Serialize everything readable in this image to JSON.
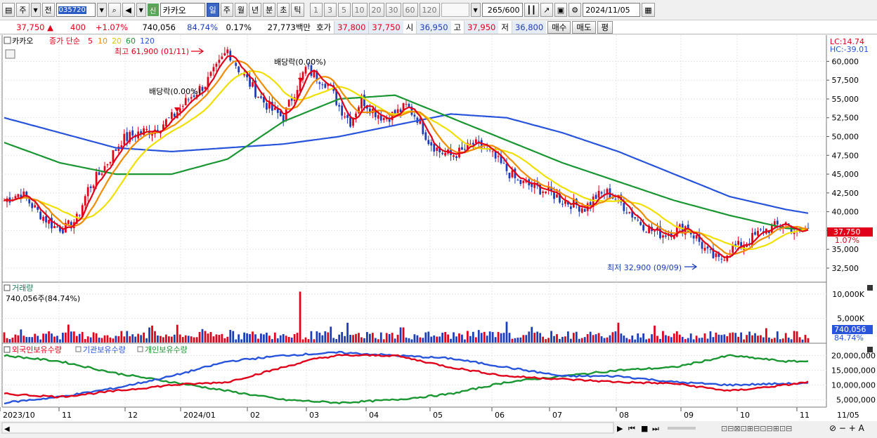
{
  "toolbar": {
    "period_label": "주",
    "prev_label": "전",
    "stock_code": "035720",
    "new_badge": "신",
    "stock_name": "카카오",
    "intervals": [
      "일",
      "주",
      "월",
      "년",
      "분",
      "초",
      "틱"
    ],
    "active_interval": "일",
    "multipliers": [
      "1",
      "3",
      "5",
      "10",
      "20",
      "30",
      "60",
      "120"
    ],
    "count": "265",
    "count_max": "/600",
    "date": "2024/11/05"
  },
  "quote": {
    "price": "37,750",
    "arrow": "▲",
    "change": "400",
    "change_pct": "+1.07%",
    "volume": "740,056",
    "volume_ratio": "84.74%",
    "turnover": "0.17%",
    "amount": "27,773백만",
    "bid_ask_label": "호가",
    "ask": "37,800",
    "bid": "37,750",
    "open_label": "시",
    "open": "36,950",
    "high_label": "고",
    "high": "37,950",
    "low_label": "저",
    "low": "36,800",
    "buy_button": "매수",
    "sell_button": "매도",
    "eval_button": "평"
  },
  "price_panel": {
    "title": "카카오",
    "ma_legend_prefix": "종가 단순",
    "ma_periods": [
      "5",
      "10",
      "20",
      "60",
      "120"
    ],
    "ma_colors": [
      "#e0001a",
      "#f08c00",
      "#f0e000",
      "#1a9632",
      "#2854dc"
    ],
    "lc_label": "LC:14.74",
    "hc_label": "HC:-39.01",
    "current_price_tag": "37,750",
    "current_change_tag": "1.07%",
    "high_annotation": "최고 61,900 (01/11)",
    "low_annotation": "최저 32,900 (09/09)",
    "dividend_annotation_1": "배당락(0.00%)",
    "dividend_annotation_2": "배당락(0.00%)",
    "y_ticks": [
      "60,000",
      "57,500",
      "55,000",
      "52,500",
      "50,000",
      "47,500",
      "45,000",
      "42,500",
      "40,000",
      "37,500",
      "35,000",
      "32,500"
    ]
  },
  "volume_panel": {
    "title": "거래량",
    "info": "740,056주(84.74%)",
    "y_ticks": [
      "10,000K",
      "5,000K"
    ],
    "current_tag": "740,056",
    "current_pct": "84.74%"
  },
  "holding_panel": {
    "legend": [
      "외국인보유수량",
      "기관보유수량",
      "개인보유수량"
    ],
    "legend_colors": [
      "#e0001a",
      "#2854dc",
      "#1a9632"
    ],
    "y_ticks": [
      "20,000,000",
      "15,000,000",
      "10,000,000",
      "5,000,000"
    ]
  },
  "x_axis": {
    "labels": [
      "2023/10",
      "11",
      "12",
      "2024/01",
      "02",
      "03",
      "04",
      "05",
      "06",
      "07",
      "08",
      "09",
      "10",
      "11",
      "11/05"
    ]
  },
  "chart_data": {
    "type": "candlestick",
    "title": "카카오",
    "y_range": [
      31000,
      62000
    ],
    "price_trend": [
      [
        0,
        41500
      ],
      [
        6,
        42500
      ],
      [
        12,
        40000
      ],
      [
        18,
        38000
      ],
      [
        22,
        37800
      ],
      [
        26,
        39000
      ],
      [
        30,
        43000
      ],
      [
        36,
        46000
      ],
      [
        42,
        49500
      ],
      [
        48,
        50500
      ],
      [
        54,
        51000
      ],
      [
        60,
        52500
      ],
      [
        66,
        55000
      ],
      [
        72,
        57000
      ],
      [
        76,
        59000
      ],
      [
        80,
        61500
      ],
      [
        84,
        59000
      ],
      [
        88,
        57000
      ],
      [
        92,
        55000
      ],
      [
        96,
        53500
      ],
      [
        100,
        52500
      ],
      [
        104,
        56000
      ],
      [
        108,
        59000
      ],
      [
        112,
        58000
      ],
      [
        116,
        57000
      ],
      [
        120,
        54000
      ],
      [
        124,
        52000
      ],
      [
        128,
        55000
      ],
      [
        132,
        53500
      ],
      [
        136,
        52500
      ],
      [
        140,
        53000
      ],
      [
        144,
        54000
      ],
      [
        148,
        52500
      ],
      [
        152,
        49500
      ],
      [
        156,
        48000
      ],
      [
        160,
        47500
      ],
      [
        164,
        48000
      ],
      [
        168,
        49000
      ],
      [
        172,
        48500
      ],
      [
        176,
        47000
      ],
      [
        180,
        45500
      ],
      [
        184,
        44000
      ],
      [
        188,
        43500
      ],
      [
        192,
        43000
      ],
      [
        196,
        42500
      ],
      [
        200,
        41500
      ],
      [
        204,
        41000
      ],
      [
        208,
        40500
      ],
      [
        212,
        42000
      ],
      [
        216,
        42500
      ],
      [
        220,
        41500
      ],
      [
        224,
        40000
      ],
      [
        228,
        38500
      ],
      [
        232,
        37500
      ],
      [
        236,
        37000
      ],
      [
        240,
        37500
      ],
      [
        244,
        38000
      ],
      [
        248,
        36500
      ],
      [
        252,
        34500
      ],
      [
        256,
        33500
      ],
      [
        260,
        35000
      ],
      [
        264,
        35500
      ],
      [
        268,
        36500
      ],
      [
        272,
        37500
      ],
      [
        276,
        38000
      ],
      [
        280,
        38500
      ],
      [
        284,
        37000
      ],
      [
        288,
        37750
      ]
    ],
    "ma60": [
      [
        0,
        49200
      ],
      [
        20,
        46500
      ],
      [
        40,
        45000
      ],
      [
        60,
        45000
      ],
      [
        80,
        47000
      ],
      [
        100,
        52000
      ],
      [
        120,
        55000
      ],
      [
        140,
        55500
      ],
      [
        160,
        52500
      ],
      [
        180,
        49500
      ],
      [
        200,
        46500
      ],
      [
        220,
        44000
      ],
      [
        240,
        41500
      ],
      [
        260,
        39500
      ],
      [
        280,
        37800
      ],
      [
        288,
        37600
      ]
    ],
    "ma120": [
      [
        0,
        52500
      ],
      [
        20,
        50500
      ],
      [
        40,
        48500
      ],
      [
        60,
        48000
      ],
      [
        80,
        48500
      ],
      [
        100,
        49000
      ],
      [
        120,
        50000
      ],
      [
        140,
        51500
      ],
      [
        160,
        53000
      ],
      [
        180,
        52500
      ],
      [
        200,
        50500
      ],
      [
        220,
        48000
      ],
      [
        240,
        45000
      ],
      [
        260,
        42000
      ],
      [
        280,
        40300
      ],
      [
        288,
        39800
      ]
    ],
    "foreign_holding": [
      [
        0,
        7
      ],
      [
        20,
        6
      ],
      [
        40,
        8
      ],
      [
        60,
        10
      ],
      [
        80,
        11
      ],
      [
        100,
        16
      ],
      [
        112,
        19
      ],
      [
        120,
        20
      ],
      [
        140,
        20
      ],
      [
        160,
        16
      ],
      [
        180,
        13
      ],
      [
        200,
        12
      ],
      [
        220,
        11
      ],
      [
        240,
        10.5
      ],
      [
        260,
        8
      ],
      [
        280,
        10
      ],
      [
        288,
        11
      ]
    ],
    "institution_holding": [
      [
        0,
        4
      ],
      [
        20,
        6
      ],
      [
        40,
        9
      ],
      [
        60,
        13
      ],
      [
        80,
        18
      ],
      [
        100,
        20
      ],
      [
        120,
        21
      ],
      [
        140,
        20
      ],
      [
        160,
        19
      ],
      [
        180,
        16
      ],
      [
        200,
        13
      ],
      [
        220,
        13
      ],
      [
        240,
        11
      ],
      [
        260,
        10
      ],
      [
        280,
        10.5
      ],
      [
        288,
        10.5
      ]
    ],
    "individual_holding": [
      [
        0,
        20
      ],
      [
        20,
        18
      ],
      [
        40,
        14
      ],
      [
        60,
        11
      ],
      [
        80,
        8
      ],
      [
        100,
        5
      ],
      [
        120,
        4
      ],
      [
        140,
        5
      ],
      [
        160,
        7
      ],
      [
        180,
        11
      ],
      [
        200,
        13
      ],
      [
        220,
        15
      ],
      [
        240,
        16
      ],
      [
        260,
        20
      ],
      [
        280,
        18
      ],
      [
        288,
        18
      ]
    ],
    "holding_range": [
      3000000,
      22000000
    ]
  }
}
